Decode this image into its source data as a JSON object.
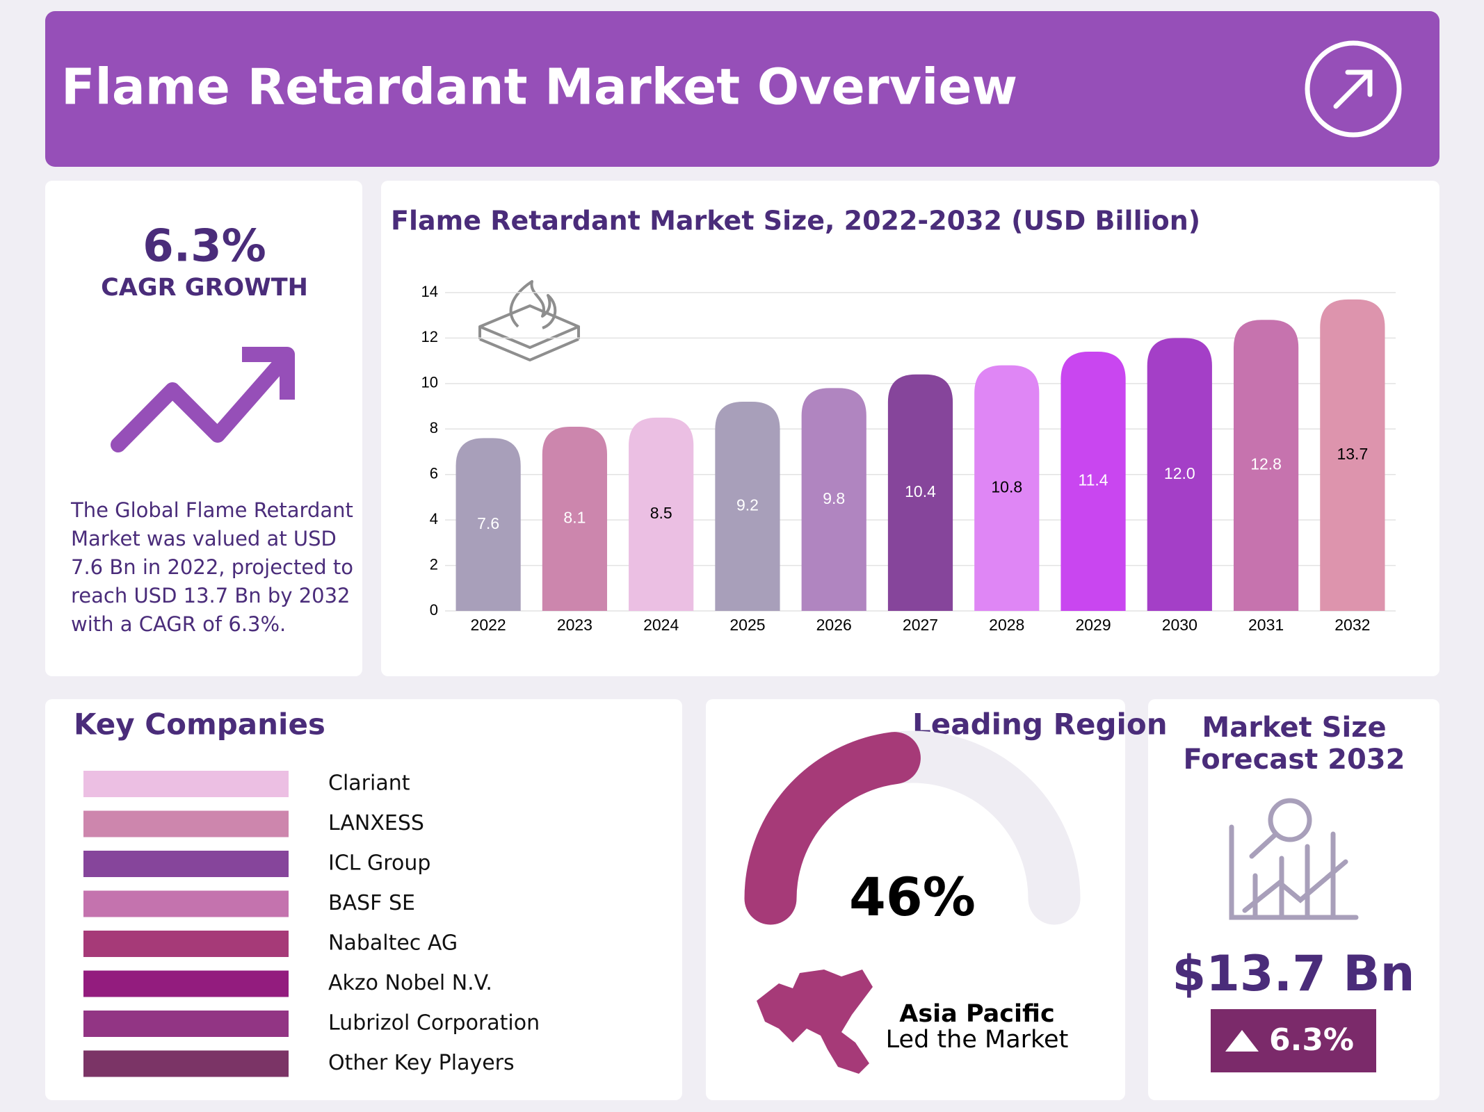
{
  "header": {
    "title": "Flame Retardant Market Overview"
  },
  "cagr_panel": {
    "value": "6.3%",
    "label": "CAGR GROWTH",
    "description": "The Global Flame Retardant Market was valued at USD 7.6 Bn in 2022, projected to reach USD 13.7 Bn by 2032 with a CAGR of 6.3%."
  },
  "chart_data": {
    "type": "bar",
    "title": "Flame Retardant  Market Size, 2022-2032 (USD Billion)",
    "categories": [
      "2022",
      "2023",
      "2024",
      "2025",
      "2026",
      "2027",
      "2028",
      "2029",
      "2030",
      "2031",
      "2032"
    ],
    "values": [
      7.6,
      8.1,
      8.5,
      9.2,
      9.8,
      10.4,
      10.8,
      11.4,
      12.0,
      12.8,
      13.7
    ],
    "value_labels": [
      "7.6",
      "8.1",
      "8.5",
      "9.2",
      "9.8",
      "10.4",
      "10.8",
      "11.4",
      "12.0",
      "12.8",
      "13.7"
    ],
    "colors": [
      "#a89fba",
      "#cc86ad",
      "#ebbfe3",
      "#a89fba",
      "#b085c0",
      "#86459b",
      "#df86f5",
      "#c946f0",
      "#a43fc7",
      "#c673ae",
      "#dd94ad"
    ],
    "label_colors": [
      "#ffffff",
      "#ffffff",
      "#000000",
      "#ffffff",
      "#ffffff",
      "#ffffff",
      "#000000",
      "#ffffff",
      "#ffffff",
      "#ffffff",
      "#000000"
    ],
    "ylim": [
      0,
      14
    ],
    "yticks": [
      0,
      2,
      4,
      6,
      8,
      10,
      12,
      14
    ],
    "grid": true
  },
  "key_companies": {
    "title": "Key Companies",
    "items": [
      {
        "name": "Clariant",
        "color": "#ecbfe3"
      },
      {
        "name": "LANXESS",
        "color": "#cd86ad"
      },
      {
        "name": "ICL Group",
        "color": "#86459b"
      },
      {
        "name": "BASF SE",
        "color": "#c473ae"
      },
      {
        "name": "Nabaltec AG",
        "color": "#a63a78"
      },
      {
        "name": "Akzo Nobel N.V.",
        "color": "#931c7e"
      },
      {
        "name": "Lubrizol Corporation",
        "color": "#923584"
      },
      {
        "name": "Other Key Players",
        "color": "#7b3466"
      }
    ]
  },
  "leading_region": {
    "title": "Leading Region",
    "share": 46,
    "share_label": "46%",
    "region": "Asia Pacific",
    "caption": "Led the Market"
  },
  "forecast": {
    "title": "Market Size Forecast 2032",
    "value": "$13.7 Bn",
    "growth": "6.3%"
  }
}
